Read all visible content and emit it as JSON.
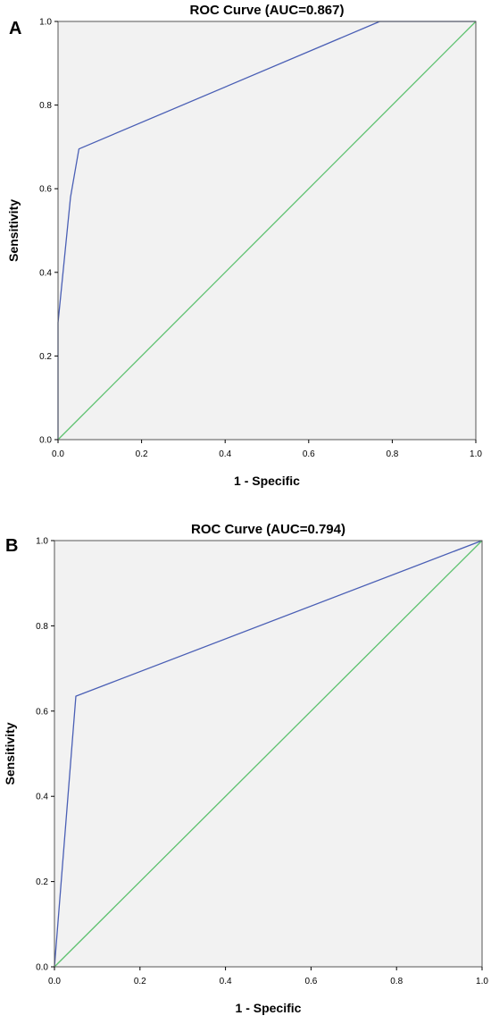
{
  "chart_data": [
    {
      "type": "line",
      "panel_label": "A",
      "title": "ROC Curve (AUC=0.867)",
      "xlabel": "1 - Specific",
      "ylabel": "Sensitivity",
      "xlim": [
        0,
        1
      ],
      "ylim": [
        0,
        1
      ],
      "x_ticks": [
        "0.0",
        "0.2",
        "0.4",
        "0.6",
        "0.8",
        "1.0"
      ],
      "y_ticks": [
        "0.0",
        "0.2",
        "0.4",
        "0.6",
        "0.8",
        "1.0"
      ],
      "grid": false,
      "plot_background": "#f2f2f2",
      "series": [
        {
          "color": "#4a5fb5",
          "points": [
            [
              0.0,
              0.0
            ],
            [
              0.0,
              0.28
            ],
            [
              0.03,
              0.58
            ],
            [
              0.05,
              0.695
            ],
            [
              0.77,
              1.0
            ],
            [
              1.0,
              1.0
            ]
          ]
        },
        {
          "color": "#5cc16e",
          "points": [
            [
              0.0,
              0.0
            ],
            [
              1.0,
              1.0
            ]
          ]
        }
      ]
    },
    {
      "type": "line",
      "panel_label": "B",
      "title": "ROC Curve (AUC=0.794)",
      "xlabel": "1 - Specific",
      "ylabel": "Sensitivity",
      "xlim": [
        0,
        1
      ],
      "ylim": [
        0,
        1
      ],
      "x_ticks": [
        "0.0",
        "0.2",
        "0.4",
        "0.6",
        "0.8",
        "1.0"
      ],
      "y_ticks": [
        "0.0",
        "0.2",
        "0.4",
        "0.6",
        "0.8",
        "1.0"
      ],
      "grid": false,
      "plot_background": "#f2f2f2",
      "series": [
        {
          "color": "#4a5fb5",
          "points": [
            [
              0.0,
              0.0
            ],
            [
              0.05,
              0.635
            ],
            [
              1.0,
              1.0
            ]
          ]
        },
        {
          "color": "#5cc16e",
          "points": [
            [
              0.0,
              0.0
            ],
            [
              1.0,
              1.0
            ]
          ]
        }
      ]
    }
  ]
}
